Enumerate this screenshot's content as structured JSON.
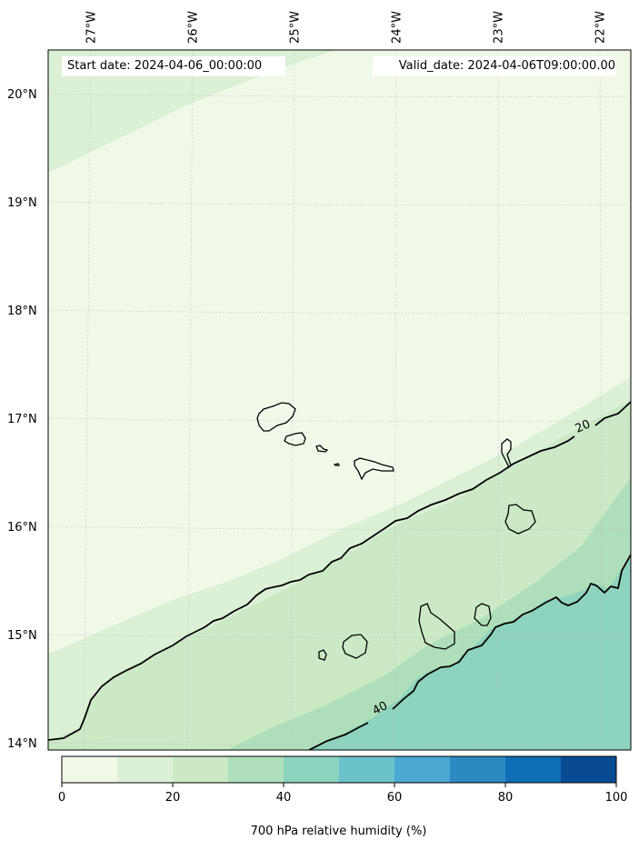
{
  "header": {
    "start_date": "Start date: 2024-04-06_00:00:00",
    "valid_date": "Valid_date: 2024-04-06T09:00:00.00"
  },
  "axes": {
    "longitude_labels": [
      "27°W",
      "26°W",
      "25°W",
      "24°W",
      "23°W",
      "22°W"
    ],
    "latitude_labels": [
      "20°N",
      "19°N",
      "18°N",
      "17°N",
      "16°N",
      "15°N",
      "14°N"
    ]
  },
  "contours": {
    "labels": [
      "20",
      "40"
    ]
  },
  "colorbar": {
    "title": "700 hPa relative humidity (%)",
    "tick_labels": [
      "0",
      "20",
      "40",
      "60",
      "80",
      "100"
    ],
    "colors": [
      "#f0f9e8",
      "#dcf0d6",
      "#cbe9c5",
      "#afdfba",
      "#8dd3bf",
      "#6cc2cb",
      "#4aa8d2",
      "#2c8ac1",
      "#0f6eb5",
      "#084b93"
    ]
  },
  "map_colors": {
    "rh_0_10": "#f0f9e8",
    "rh_10_20": "#dcf0d6",
    "rh_20_30": "#cbe9c5",
    "rh_30_40": "#afdfba",
    "rh_40_50": "#8dd3bf"
  }
}
